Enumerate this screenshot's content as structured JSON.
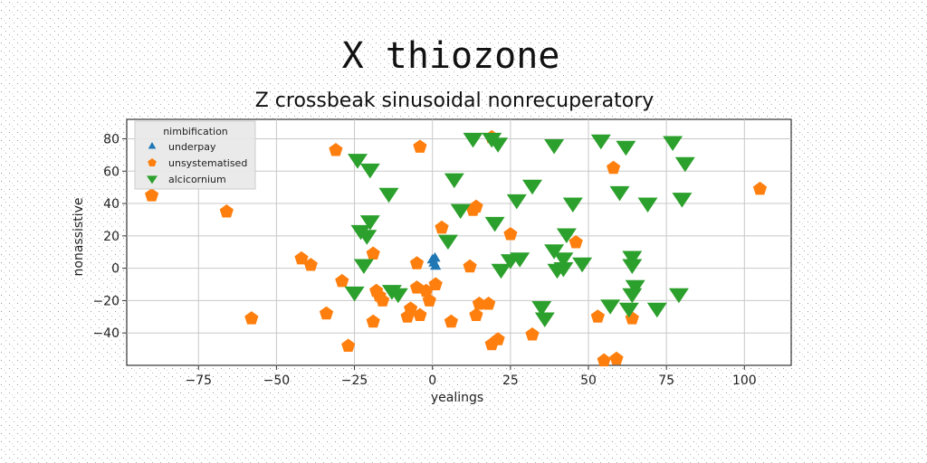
{
  "chart_data": {
    "type": "scatter",
    "suptitle": "X thiozone",
    "title": "Z crossbeak sinusoidal nonrecuperatory",
    "xlabel": "yealings",
    "ylabel": "nonassistive",
    "xlim": [
      -98,
      115
    ],
    "ylim": [
      -60,
      92
    ],
    "xticks": [
      -75,
      -50,
      -25,
      0,
      25,
      50,
      75,
      100
    ],
    "yticks": [
      -40,
      -20,
      0,
      20,
      40,
      60,
      80
    ],
    "grid": true,
    "legend": {
      "title": "nimbification",
      "placement": "top-left"
    },
    "series": [
      {
        "name": "underpay",
        "marker": "triangle-up",
        "color": "#1f77b4",
        "points": [
          [
            0,
            5
          ],
          [
            0.5,
            3
          ],
          [
            0.8,
            6
          ],
          [
            1.0,
            1
          ]
        ]
      },
      {
        "name": "unsystematised",
        "marker": "pentagon",
        "color": "#ff7f0e",
        "points": [
          [
            -90,
            45
          ],
          [
            -66,
            35
          ],
          [
            -58,
            -31
          ],
          [
            -42,
            6
          ],
          [
            -39,
            2
          ],
          [
            -34,
            -28
          ],
          [
            -31,
            73
          ],
          [
            -29,
            -8
          ],
          [
            -27,
            -48
          ],
          [
            -19,
            9
          ],
          [
            -19,
            -33
          ],
          [
            -18,
            -14
          ],
          [
            -17,
            -17
          ],
          [
            -16,
            -20
          ],
          [
            -8,
            -30
          ],
          [
            -7,
            -25
          ],
          [
            -5,
            3
          ],
          [
            -5,
            -12
          ],
          [
            -4,
            75
          ],
          [
            -4,
            -29
          ],
          [
            -2,
            -14
          ],
          [
            -1,
            -20
          ],
          [
            1,
            -10
          ],
          [
            3,
            25
          ],
          [
            6,
            -33
          ],
          [
            12,
            1
          ],
          [
            13,
            36
          ],
          [
            14,
            38
          ],
          [
            14,
            -29
          ],
          [
            15,
            -22
          ],
          [
            18,
            -22
          ],
          [
            19,
            81
          ],
          [
            19,
            -47
          ],
          [
            21,
            -44
          ],
          [
            25,
            21
          ],
          [
            32,
            -41
          ],
          [
            46,
            16
          ],
          [
            53,
            -30
          ],
          [
            55,
            -57
          ],
          [
            58,
            62
          ],
          [
            59,
            -56
          ],
          [
            64,
            -31
          ],
          [
            105,
            49
          ]
        ]
      },
      {
        "name": "alcicornium",
        "marker": "triangle-down",
        "color": "#2ca02c",
        "points": [
          [
            -25,
            -15
          ],
          [
            -24,
            67
          ],
          [
            -23,
            23
          ],
          [
            -22,
            2
          ],
          [
            -21,
            20
          ],
          [
            -20,
            29
          ],
          [
            -20,
            61
          ],
          [
            -14,
            46
          ],
          [
            -13,
            -14
          ],
          [
            -11,
            -16
          ],
          [
            5,
            17
          ],
          [
            7,
            55
          ],
          [
            9,
            36
          ],
          [
            13,
            80
          ],
          [
            19,
            80
          ],
          [
            20,
            28
          ],
          [
            21,
            77
          ],
          [
            22,
            -1
          ],
          [
            25,
            5
          ],
          [
            27,
            42
          ],
          [
            28,
            6
          ],
          [
            32,
            51
          ],
          [
            35,
            -24
          ],
          [
            36,
            -31
          ],
          [
            39,
            11
          ],
          [
            39,
            76
          ],
          [
            40,
            -1
          ],
          [
            42,
            0
          ],
          [
            42,
            6
          ],
          [
            43,
            21
          ],
          [
            45,
            40
          ],
          [
            48,
            3
          ],
          [
            54,
            79
          ],
          [
            57,
            -23
          ],
          [
            60,
            47
          ],
          [
            62,
            75
          ],
          [
            63,
            -25
          ],
          [
            64,
            -16
          ],
          [
            64,
            7
          ],
          [
            64,
            2
          ],
          [
            65,
            -11
          ],
          [
            69,
            40
          ],
          [
            72,
            -25
          ],
          [
            77,
            78
          ],
          [
            79,
            -16
          ],
          [
            80,
            43
          ],
          [
            81,
            65
          ]
        ]
      }
    ]
  }
}
